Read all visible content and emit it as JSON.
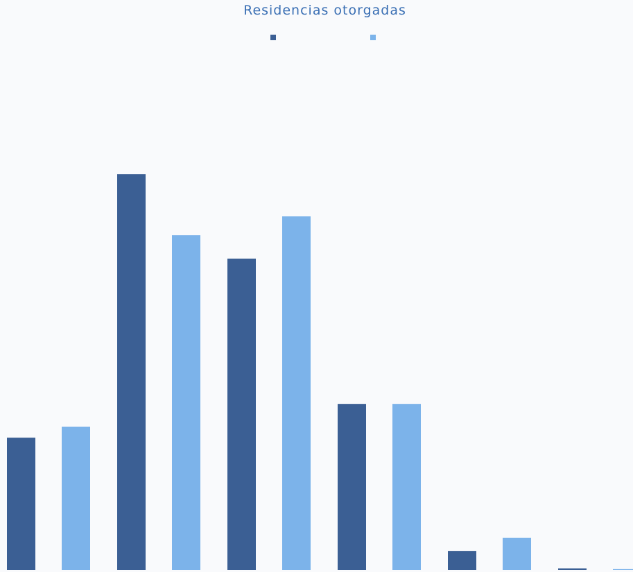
{
  "chart_data": {
    "type": "bar",
    "title": "Residencias otorgadas",
    "categories": [
      "",
      "",
      "",
      "",
      "",
      ""
    ],
    "series": [
      {
        "name": "",
        "color": "#3b5f94",
        "values": [
          845,
          2530,
          1990,
          1060,
          120,
          10
        ]
      },
      {
        "name": "",
        "color": "#7cb3ea",
        "values": [
          915,
          2140,
          2260,
          1060,
          205,
          5
        ]
      }
    ],
    "ylim": [
      0,
      3200
    ],
    "grid": false,
    "legend_position": "top-center"
  }
}
